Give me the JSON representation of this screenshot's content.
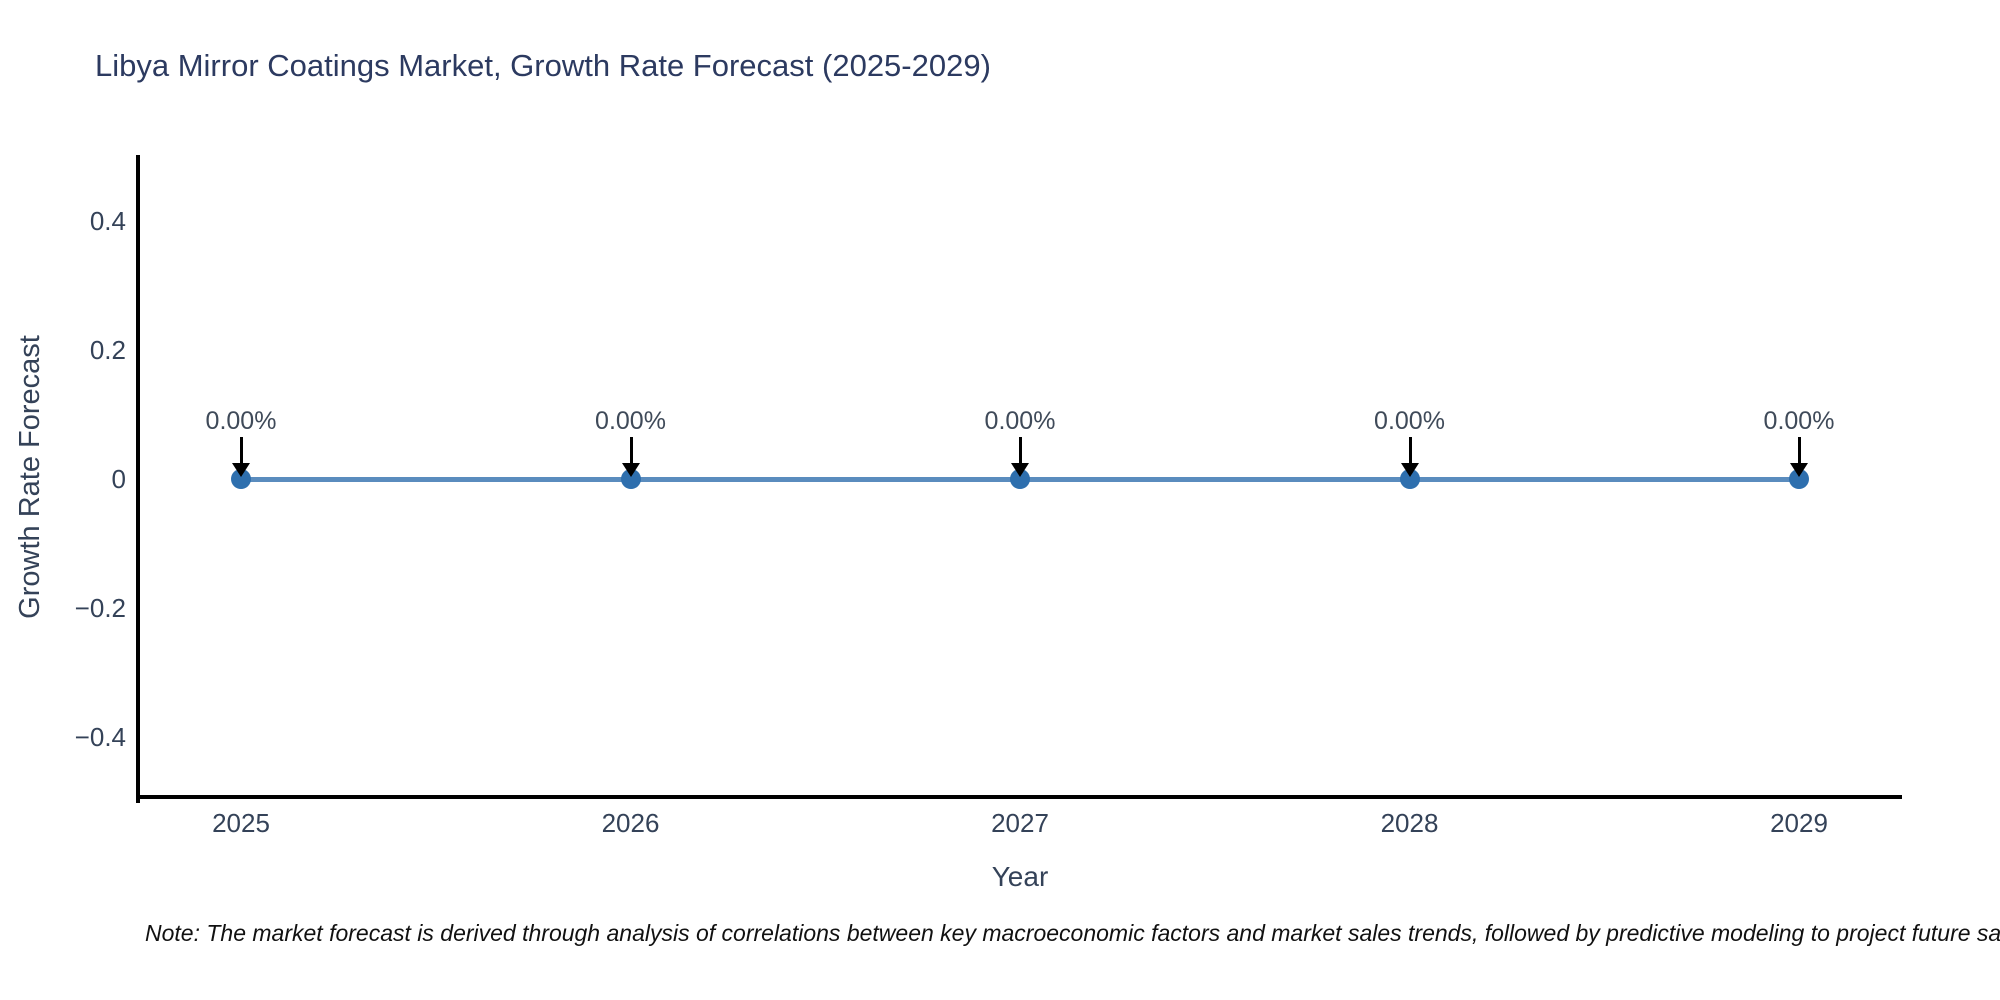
{
  "title": "Libya Mirror Coatings Market, Growth Rate Forecast (2025-2029)",
  "note": "Note: The market forecast is derived through analysis of correlations between key macroeconomic factors and market sales trends, followed by predictive modeling to project future sales",
  "colors": {
    "background": "#ffffff",
    "line": "#5a8cbe",
    "marker": "#2e6fae",
    "axis": "#000000",
    "axis_text": "#344258",
    "title_text": "#2c3a60",
    "annotation_text": "#3f4a59",
    "arrow": "#000000"
  },
  "chart_data": {
    "type": "line",
    "title": "Libya Mirror Coatings Market, Growth Rate Forecast (2025-2029)",
    "xlabel": "Year",
    "ylabel": "Growth Rate Forecast",
    "x": [
      2025,
      2026,
      2027,
      2028,
      2029
    ],
    "values": [
      0,
      0,
      0,
      0,
      0
    ],
    "point_labels": [
      "0.00%",
      "0.00%",
      "0.00%",
      "0.00%",
      "0.00%"
    ],
    "x_tick_labels": [
      "2025",
      "2026",
      "2027",
      "2028",
      "2029"
    ],
    "y_ticks": [
      0.4,
      0.2,
      0,
      -0.2,
      -0.4
    ],
    "y_tick_labels": [
      "0.4",
      "0.2",
      "0",
      "−0.2",
      "−0.4"
    ],
    "ylim": [
      -0.5,
      0.5
    ],
    "grid": false,
    "legend": null,
    "markers": true,
    "annotation_style": "each point labeled with a percentage and a downward black arrow pointing at the marker"
  }
}
